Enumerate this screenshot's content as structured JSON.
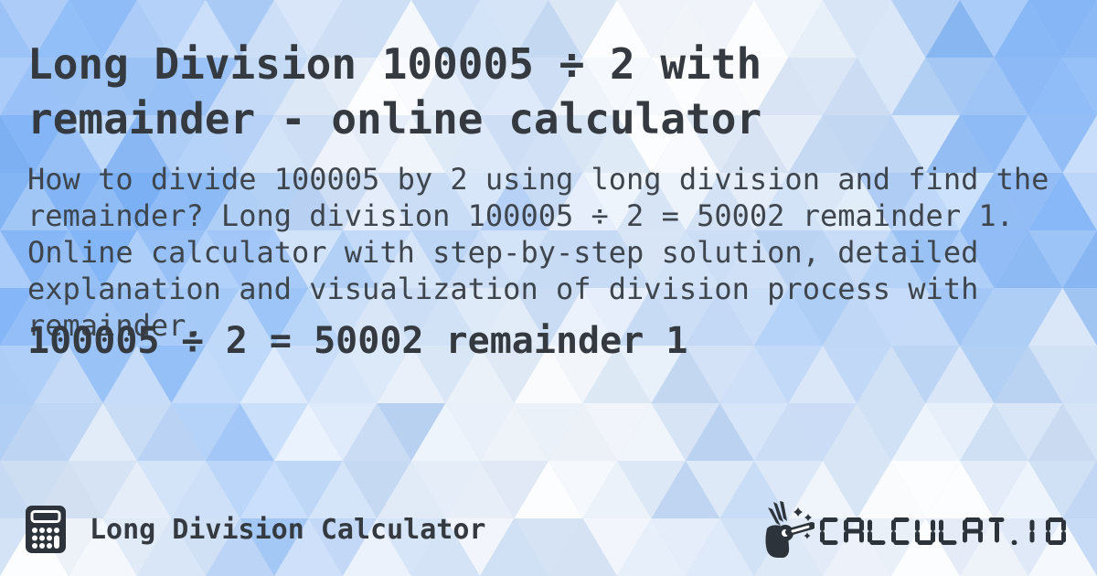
{
  "card": {
    "title": "Long Division 100005 ÷ 2 with remainder - online calculator",
    "description": "How to divide 100005 by 2 using long division and find the remainder? Long division 100005 ÷ 2 = 50002 remainder 1. Online calculator with step-by-step solution, detailed explanation and visualization of division process with remainder.",
    "result": "100005 ÷ 2 = 50002 remainder 1"
  },
  "footer": {
    "app_name": "Long Division Calculator",
    "logo_text": "CALCULAT.IO",
    "icons": {
      "left": "calculator-icon",
      "right": "magic-wand-hand-icon"
    }
  },
  "colors": {
    "text_dark": "#343a40",
    "text_body": "#3e454d",
    "logo_color": "#2d333a",
    "bg_base": "#c3daf8",
    "bg_tint_light": "#ffffff",
    "bg_tint_deep": "#8fbaf3"
  },
  "background": {
    "pattern": "triangle-mosaic",
    "hue": 214
  }
}
